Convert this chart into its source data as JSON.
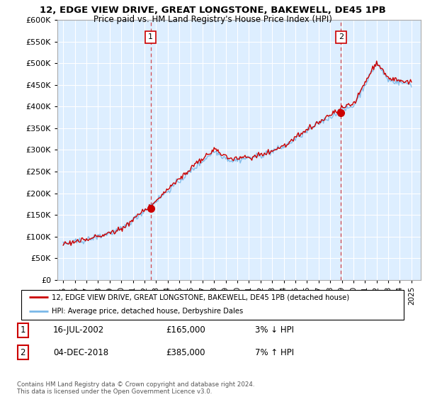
{
  "title1": "12, EDGE VIEW DRIVE, GREAT LONGSTONE, BAKEWELL, DE45 1PB",
  "title2": "Price paid vs. HM Land Registry's House Price Index (HPI)",
  "legend_line1": "12, EDGE VIEW DRIVE, GREAT LONGSTONE, BAKEWELL, DE45 1PB (detached house)",
  "legend_line2": "HPI: Average price, detached house, Derbyshire Dales",
  "sale1_label": "1",
  "sale1_date": "16-JUL-2002",
  "sale1_price": "£165,000",
  "sale1_hpi": "3% ↓ HPI",
  "sale2_label": "2",
  "sale2_date": "04-DEC-2018",
  "sale2_price": "£385,000",
  "sale2_hpi": "7% ↑ HPI",
  "footnote": "Contains HM Land Registry data © Crown copyright and database right 2024.\nThis data is licensed under the Open Government Licence v3.0.",
  "hpi_color": "#7ab8e8",
  "price_color": "#cc0000",
  "dashed_color": "#cc0000",
  "bg_color": "#ddeeff",
  "ylim": [
    0,
    600000
  ],
  "yticks": [
    0,
    50000,
    100000,
    150000,
    200000,
    250000,
    300000,
    350000,
    400000,
    450000,
    500000,
    550000,
    600000
  ],
  "sale1_x": 2002.54,
  "sale1_y": 165000,
  "sale2_x": 2018.92,
  "sale2_y": 385000,
  "xmin": 1994.5,
  "xmax": 2025.8
}
